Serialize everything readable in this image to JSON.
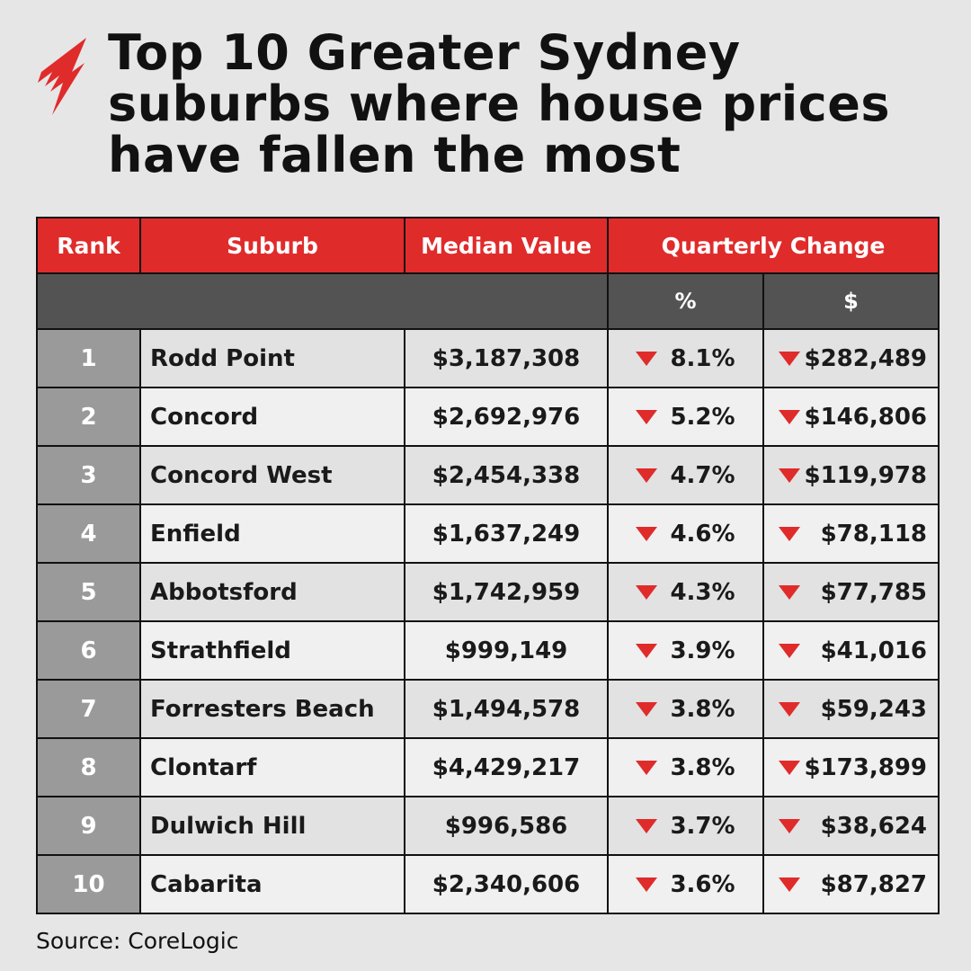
{
  "title": "Top 10 Greater Sydney suburbs where house prices have fallen the most",
  "logo": "SBS",
  "colors": {
    "accent": "#e02b2b",
    "subheader": "#535353",
    "rank_cell": "#9a9a9a"
  },
  "chart_data": {
    "type": "table",
    "title": "Top 10 Greater Sydney suburbs where house prices have fallen the most",
    "headers": [
      "Rank",
      "Suburb",
      "Median Value",
      "Quarterly Change"
    ],
    "subheaders": [
      "%",
      "$"
    ],
    "change_icon": "down-triangle-icon",
    "rows": [
      {
        "rank": "1",
        "suburb": "Rodd Point",
        "median": "$3,187,308",
        "pct": "8.1%",
        "dollar": "$282,489"
      },
      {
        "rank": "2",
        "suburb": "Concord",
        "median": "$2,692,976",
        "pct": "5.2%",
        "dollar": "$146,806"
      },
      {
        "rank": "3",
        "suburb": "Concord West",
        "median": "$2,454,338",
        "pct": "4.7%",
        "dollar": "$119,978"
      },
      {
        "rank": "4",
        "suburb": "Enfield",
        "median": "$1,637,249",
        "pct": "4.6%",
        "dollar": "$78,118"
      },
      {
        "rank": "5",
        "suburb": "Abbotsford",
        "median": "$1,742,959",
        "pct": "4.3%",
        "dollar": "$77,785"
      },
      {
        "rank": "6",
        "suburb": "Strathfield",
        "median": "$999,149",
        "pct": "3.9%",
        "dollar": "$41,016"
      },
      {
        "rank": "7",
        "suburb": "Forresters Beach",
        "median": "$1,494,578",
        "pct": "3.8%",
        "dollar": "$59,243"
      },
      {
        "rank": "8",
        "suburb": "Clontarf",
        "median": "$4,429,217",
        "pct": "3.8%",
        "dollar": "$173,899"
      },
      {
        "rank": "9",
        "suburb": "Dulwich Hill",
        "median": "$996,586",
        "pct": "3.7%",
        "dollar": "$38,624"
      },
      {
        "rank": "10",
        "suburb": "Cabarita",
        "median": "$2,340,606",
        "pct": "3.6%",
        "dollar": "$87,827"
      }
    ]
  },
  "source": "Source: CoreLogic"
}
